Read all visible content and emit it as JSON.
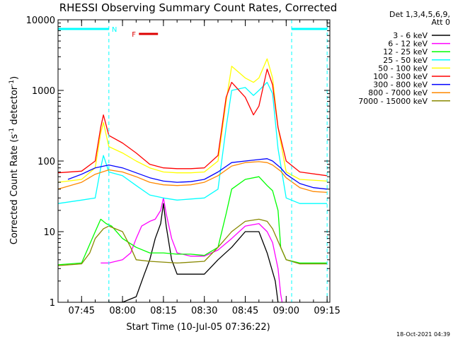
{
  "chart_data": {
    "type": "line",
    "title": "RHESSI Observing Summary Count Rates, Corrected",
    "xlabel": "Start Time (10-Jul-05 07:36:22)",
    "ylabel_main": "Corrected Count Rate (s",
    "ylabel_sup1": "-1",
    "ylabel_mid": " detector",
    "ylabel_sup2": "-1",
    "ylabel_end": ")",
    "ylog": true,
    "ylim": [
      1,
      10000
    ],
    "xlim": [
      "07:36:22",
      "09:16:00"
    ],
    "x_ticks": [
      "07:45",
      "08:00",
      "08:15",
      "08:30",
      "08:45",
      "09:00",
      "09:15"
    ],
    "y_ticks": [
      "1",
      "10",
      "100",
      "1000",
      "10000"
    ],
    "legend_header": [
      "Det 1,3,4,5,6,9,",
      "Att 0"
    ],
    "flags": [
      {
        "label": "N",
        "color": "#00ffff",
        "intervals": [
          [
            "07:36:22",
            "07:55:00"
          ],
          [
            "09:02:00",
            "09:15:00"
          ]
        ]
      },
      {
        "label": "F",
        "color": "#dd0000",
        "intervals": [
          [
            "08:06:00",
            "08:13:00"
          ]
        ]
      }
    ],
    "date_stamp": "18-Oct-2021 04:39",
    "series": [
      {
        "name": "3 - 6 keV",
        "color": "#000000",
        "points": [
          [
            "07:55",
            1.0
          ],
          [
            "08:00",
            1.0
          ],
          [
            "08:05",
            1.2
          ],
          [
            "08:08",
            2.5
          ],
          [
            "08:10",
            4
          ],
          [
            "08:12",
            8
          ],
          [
            "08:14",
            13
          ],
          [
            "08:15",
            25
          ],
          [
            "08:16",
            12
          ],
          [
            "08:18",
            4
          ],
          [
            "08:20",
            2.5
          ],
          [
            "08:25",
            2.5
          ],
          [
            "08:30",
            2.5
          ],
          [
            "08:35",
            4
          ],
          [
            "08:40",
            6
          ],
          [
            "08:45",
            10
          ],
          [
            "08:50",
            10
          ],
          [
            "08:53",
            5
          ],
          [
            "08:56",
            2
          ],
          [
            "08:57",
            1.0
          ]
        ]
      },
      {
        "name": "6 - 12 keV",
        "color": "#ff00ff",
        "points": [
          [
            "07:52",
            3.6
          ],
          [
            "07:55",
            3.6
          ],
          [
            "08:00",
            4
          ],
          [
            "08:03",
            5
          ],
          [
            "08:05",
            8
          ],
          [
            "08:07",
            12
          ],
          [
            "08:10",
            14
          ],
          [
            "08:12",
            15
          ],
          [
            "08:14",
            20
          ],
          [
            "08:15",
            30
          ],
          [
            "08:16",
            18
          ],
          [
            "08:18",
            8
          ],
          [
            "08:20",
            5
          ],
          [
            "08:25",
            4.5
          ],
          [
            "08:30",
            4.5
          ],
          [
            "08:35",
            5.5
          ],
          [
            "08:40",
            8
          ],
          [
            "08:45",
            12
          ],
          [
            "08:50",
            13
          ],
          [
            "08:53",
            10
          ],
          [
            "08:55",
            7
          ],
          [
            "08:57",
            3
          ],
          [
            "08:58",
            1.3
          ],
          [
            "08:58:30",
            1.0
          ]
        ]
      },
      {
        "name": "12 - 25 keV",
        "color": "#00ff00",
        "points": [
          [
            "07:36:22",
            3.4
          ],
          [
            "07:45",
            3.6
          ],
          [
            "07:50",
            10
          ],
          [
            "07:52",
            15
          ],
          [
            "07:54",
            13
          ],
          [
            "07:56",
            12
          ],
          [
            "08:00",
            8
          ],
          [
            "08:05",
            6
          ],
          [
            "08:10",
            5
          ],
          [
            "08:15",
            5
          ],
          [
            "08:20",
            4.8
          ],
          [
            "08:25",
            4.8
          ],
          [
            "08:30",
            4.6
          ],
          [
            "08:35",
            6
          ],
          [
            "08:38",
            18
          ],
          [
            "08:40",
            40
          ],
          [
            "08:45",
            55
          ],
          [
            "08:50",
            60
          ],
          [
            "08:53",
            45
          ],
          [
            "08:55",
            38
          ],
          [
            "08:57",
            20
          ],
          [
            "08:58",
            6
          ],
          [
            "09:00",
            4
          ],
          [
            "09:05",
            3.6
          ],
          [
            "09:15",
            3.6
          ]
        ]
      },
      {
        "name": "25 - 50 keV",
        "color": "#00ffff",
        "points": [
          [
            "07:36:22",
            25
          ],
          [
            "07:45",
            28
          ],
          [
            "07:50",
            30
          ],
          [
            "07:52",
            80
          ],
          [
            "07:53",
            120
          ],
          [
            "07:55",
            70
          ],
          [
            "08:00",
            62
          ],
          [
            "08:05",
            45
          ],
          [
            "08:10",
            33
          ],
          [
            "08:15",
            30
          ],
          [
            "08:20",
            28
          ],
          [
            "08:25",
            29
          ],
          [
            "08:30",
            30
          ],
          [
            "08:35",
            40
          ],
          [
            "08:38",
            300
          ],
          [
            "08:40",
            1000
          ],
          [
            "08:45",
            1100
          ],
          [
            "08:48",
            850
          ],
          [
            "08:50",
            1000
          ],
          [
            "08:53",
            1300
          ],
          [
            "08:55",
            900
          ],
          [
            "08:57",
            150
          ],
          [
            "09:00",
            30
          ],
          [
            "09:05",
            25
          ],
          [
            "09:15",
            25
          ]
        ]
      },
      {
        "name": "50 - 100 keV",
        "color": "#ffff00",
        "points": [
          [
            "07:36:22",
            50
          ],
          [
            "07:45",
            55
          ],
          [
            "07:50",
            80
          ],
          [
            "07:52",
            250
          ],
          [
            "07:53",
            350
          ],
          [
            "07:55",
            160
          ],
          [
            "08:00",
            130
          ],
          [
            "08:05",
            100
          ],
          [
            "08:10",
            80
          ],
          [
            "08:15",
            70
          ],
          [
            "08:20",
            68
          ],
          [
            "08:25",
            68
          ],
          [
            "08:30",
            70
          ],
          [
            "08:35",
            100
          ],
          [
            "08:38",
            700
          ],
          [
            "08:40",
            2200
          ],
          [
            "08:45",
            1500
          ],
          [
            "08:48",
            1300
          ],
          [
            "08:50",
            1500
          ],
          [
            "08:53",
            2800
          ],
          [
            "08:55",
            1500
          ],
          [
            "08:57",
            300
          ],
          [
            "09:00",
            70
          ],
          [
            "09:05",
            55
          ],
          [
            "09:15",
            52
          ]
        ]
      },
      {
        "name": "100 - 300 keV",
        "color": "#ff0000",
        "points": [
          [
            "07:36:22",
            68
          ],
          [
            "07:45",
            72
          ],
          [
            "07:50",
            100
          ],
          [
            "07:52",
            300
          ],
          [
            "07:53",
            450
          ],
          [
            "07:55",
            230
          ],
          [
            "08:00",
            180
          ],
          [
            "08:05",
            130
          ],
          [
            "08:10",
            90
          ],
          [
            "08:15",
            80
          ],
          [
            "08:20",
            78
          ],
          [
            "08:25",
            78
          ],
          [
            "08:30",
            80
          ],
          [
            "08:35",
            120
          ],
          [
            "08:38",
            800
          ],
          [
            "08:40",
            1300
          ],
          [
            "08:45",
            800
          ],
          [
            "08:48",
            450
          ],
          [
            "08:50",
            600
          ],
          [
            "08:53",
            2000
          ],
          [
            "08:55",
            1200
          ],
          [
            "08:57",
            300
          ],
          [
            "09:00",
            100
          ],
          [
            "09:05",
            70
          ],
          [
            "09:15",
            62
          ]
        ]
      },
      {
        "name": "300 - 800 keV",
        "color": "#0000ff",
        "points": [
          [
            "07:40",
            55
          ],
          [
            "07:45",
            65
          ],
          [
            "07:50",
            80
          ],
          [
            "07:55",
            88
          ],
          [
            "08:00",
            80
          ],
          [
            "08:05",
            68
          ],
          [
            "08:10",
            58
          ],
          [
            "08:15",
            52
          ],
          [
            "08:20",
            50
          ],
          [
            "08:25",
            51
          ],
          [
            "08:30",
            55
          ],
          [
            "08:35",
            70
          ],
          [
            "08:40",
            95
          ],
          [
            "08:45",
            100
          ],
          [
            "08:50",
            105
          ],
          [
            "08:53",
            108
          ],
          [
            "08:55",
            100
          ],
          [
            "08:58",
            80
          ],
          [
            "09:00",
            65
          ],
          [
            "09:05",
            48
          ],
          [
            "09:10",
            42
          ],
          [
            "09:15",
            40
          ]
        ]
      },
      {
        "name": "800 - 7000 keV",
        "color": "#ff8800",
        "points": [
          [
            "07:36:22",
            40
          ],
          [
            "07:45",
            50
          ],
          [
            "07:50",
            65
          ],
          [
            "07:55",
            75
          ],
          [
            "08:00",
            70
          ],
          [
            "08:05",
            60
          ],
          [
            "08:10",
            50
          ],
          [
            "08:15",
            46
          ],
          [
            "08:20",
            45
          ],
          [
            "08:25",
            46
          ],
          [
            "08:30",
            50
          ],
          [
            "08:35",
            62
          ],
          [
            "08:40",
            85
          ],
          [
            "08:45",
            95
          ],
          [
            "08:50",
            98
          ],
          [
            "08:53",
            95
          ],
          [
            "08:55",
            88
          ],
          [
            "08:58",
            72
          ],
          [
            "09:00",
            58
          ],
          [
            "09:05",
            42
          ],
          [
            "09:10",
            37
          ],
          [
            "09:15",
            36
          ]
        ]
      },
      {
        "name": "7000 - 15000 keV",
        "color": "#888800",
        "points": [
          [
            "07:36:22",
            3.3
          ],
          [
            "07:45",
            3.5
          ],
          [
            "07:48",
            5
          ],
          [
            "07:50",
            8
          ],
          [
            "07:53",
            11
          ],
          [
            "07:55",
            12
          ],
          [
            "08:00",
            10
          ],
          [
            "08:03",
            6
          ],
          [
            "08:05",
            4
          ],
          [
            "08:10",
            3.8
          ],
          [
            "08:20",
            3.6
          ],
          [
            "08:30",
            3.8
          ],
          [
            "08:35",
            6
          ],
          [
            "08:40",
            10
          ],
          [
            "08:45",
            14
          ],
          [
            "08:50",
            15
          ],
          [
            "08:53",
            14
          ],
          [
            "08:55",
            11
          ],
          [
            "08:58",
            6
          ],
          [
            "09:00",
            4
          ],
          [
            "09:05",
            3.5
          ],
          [
            "09:15",
            3.5
          ]
        ]
      }
    ]
  }
}
